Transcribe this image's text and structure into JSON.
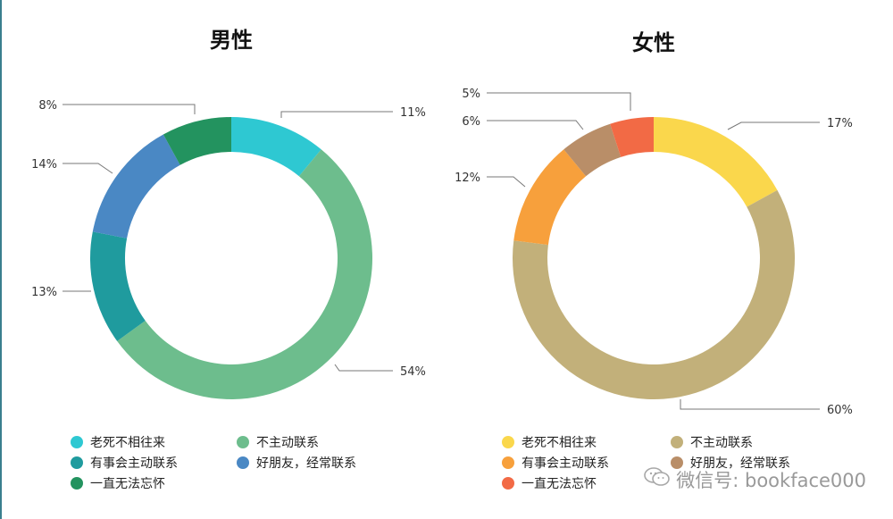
{
  "chart_data": [
    {
      "type": "pie",
      "title": "男性",
      "slices": [
        {
          "label": "老死不相往来",
          "value": 11,
          "display": "11%",
          "color": "#2ec8d2"
        },
        {
          "label": "不主动联系",
          "value": 54,
          "display": "54%",
          "color": "#6dbd8d"
        },
        {
          "label": "有事会主动联系",
          "value": 13,
          "display": "13%",
          "color": "#1f9b9e"
        },
        {
          "label": "好朋友，经常联系",
          "value": 14,
          "display": "14%",
          "color": "#4a88c4"
        },
        {
          "label": "一直无法忘怀",
          "value": 8,
          "display": "8%",
          "color": "#23935f"
        }
      ]
    },
    {
      "type": "pie",
      "title": "女性",
      "slices": [
        {
          "label": "老死不相往来",
          "value": 17,
          "display": "17%",
          "color": "#fad74c"
        },
        {
          "label": "不主动联系",
          "value": 60,
          "display": "60%",
          "color": "#c2b07a"
        },
        {
          "label": "有事会主动联系",
          "value": 12,
          "display": "12%",
          "color": "#f7a03c"
        },
        {
          "label": "好朋友，经常联系",
          "value": 6,
          "display": "6%",
          "color": "#b98e68"
        },
        {
          "label": "一直无法忘怀",
          "value": 5,
          "display": "5%",
          "color": "#f26a45"
        }
      ]
    }
  ],
  "watermark": {
    "text": "微信号: bookface000",
    "icon": "wechat-icon"
  }
}
